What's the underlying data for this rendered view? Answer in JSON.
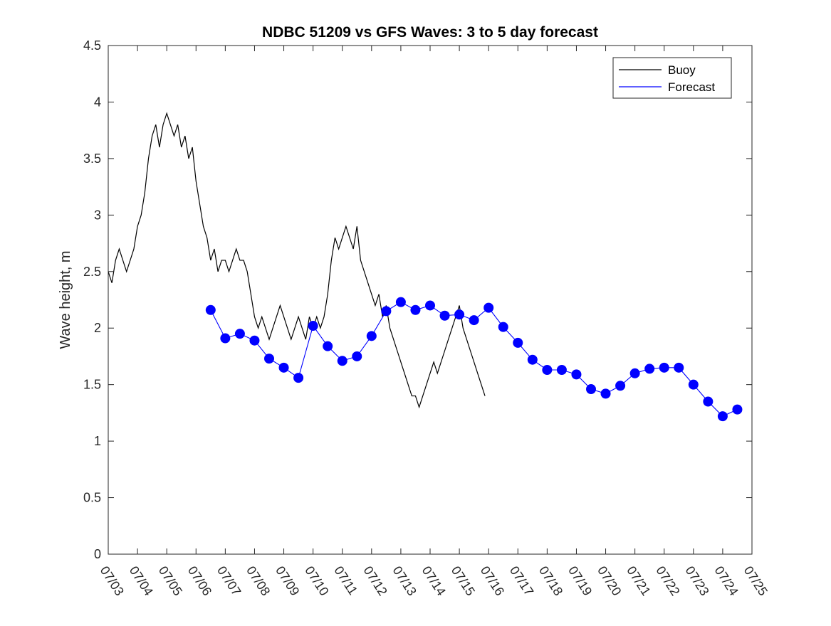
{
  "chart_data": {
    "type": "line",
    "title": "NDBC 51209 vs GFS Waves: 3 to 5 day forecast",
    "xlabel": "",
    "ylabel": "Wave height, m",
    "xlim": [
      "07/03",
      "07/25"
    ],
    "ylim": [
      0,
      4.5
    ],
    "x_tick_labels": [
      "07/03",
      "07/04",
      "07/05",
      "07/06",
      "07/07",
      "07/08",
      "07/09",
      "07/10",
      "07/11",
      "07/12",
      "07/13",
      "07/14",
      "07/15",
      "07/16",
      "07/17",
      "07/18",
      "07/19",
      "07/20",
      "07/21",
      "07/22",
      "07/23",
      "07/24",
      "07/25"
    ],
    "y_ticks": [
      0,
      0.5,
      1,
      1.5,
      2,
      2.5,
      3,
      3.5,
      4,
      4.5
    ],
    "y_tick_labels": [
      "0",
      "0.5",
      "1",
      "1.5",
      "2",
      "2.5",
      "3",
      "3.5",
      "4",
      "4.5"
    ],
    "grid": false,
    "legend_position": "top-right",
    "legend": [
      {
        "label": "Buoy",
        "color": "#000000"
      },
      {
        "label": "Forecast",
        "color": "#0000ff"
      }
    ],
    "series": [
      {
        "name": "Buoy",
        "color": "#000000",
        "style": "line",
        "points": [
          [
            "07/03 00:00",
            2.5
          ],
          [
            "07/03 03:00",
            2.4
          ],
          [
            "07/03 06:00",
            2.6
          ],
          [
            "07/03 09:00",
            2.7
          ],
          [
            "07/03 12:00",
            2.6
          ],
          [
            "07/03 15:00",
            2.5
          ],
          [
            "07/03 18:00",
            2.6
          ],
          [
            "07/03 21:00",
            2.7
          ],
          [
            "07/04 00:00",
            2.9
          ],
          [
            "07/04 03:00",
            3.0
          ],
          [
            "07/04 06:00",
            3.2
          ],
          [
            "07/04 09:00",
            3.5
          ],
          [
            "07/04 12:00",
            3.7
          ],
          [
            "07/04 15:00",
            3.8
          ],
          [
            "07/04 18:00",
            3.6
          ],
          [
            "07/04 21:00",
            3.8
          ],
          [
            "07/05 00:00",
            3.9
          ],
          [
            "07/05 03:00",
            3.8
          ],
          [
            "07/05 06:00",
            3.7
          ],
          [
            "07/05 09:00",
            3.8
          ],
          [
            "07/05 12:00",
            3.6
          ],
          [
            "07/05 15:00",
            3.7
          ],
          [
            "07/05 18:00",
            3.5
          ],
          [
            "07/05 21:00",
            3.6
          ],
          [
            "07/06 00:00",
            3.3
          ],
          [
            "07/06 03:00",
            3.1
          ],
          [
            "07/06 06:00",
            2.9
          ],
          [
            "07/06 09:00",
            2.8
          ],
          [
            "07/06 12:00",
            2.6
          ],
          [
            "07/06 15:00",
            2.7
          ],
          [
            "07/06 18:00",
            2.5
          ],
          [
            "07/06 21:00",
            2.6
          ],
          [
            "07/07 00:00",
            2.6
          ],
          [
            "07/07 03:00",
            2.5
          ],
          [
            "07/07 06:00",
            2.6
          ],
          [
            "07/07 09:00",
            2.7
          ],
          [
            "07/07 12:00",
            2.6
          ],
          [
            "07/07 15:00",
            2.6
          ],
          [
            "07/07 18:00",
            2.5
          ],
          [
            "07/07 21:00",
            2.3
          ],
          [
            "07/08 00:00",
            2.1
          ],
          [
            "07/08 03:00",
            2.0
          ],
          [
            "07/08 06:00",
            2.1
          ],
          [
            "07/08 09:00",
            2.0
          ],
          [
            "07/08 12:00",
            1.9
          ],
          [
            "07/08 15:00",
            2.0
          ],
          [
            "07/08 18:00",
            2.1
          ],
          [
            "07/08 21:00",
            2.2
          ],
          [
            "07/09 00:00",
            2.1
          ],
          [
            "07/09 03:00",
            2.0
          ],
          [
            "07/09 06:00",
            1.9
          ],
          [
            "07/09 09:00",
            2.0
          ],
          [
            "07/09 12:00",
            2.1
          ],
          [
            "07/09 15:00",
            2.0
          ],
          [
            "07/09 18:00",
            1.9
          ],
          [
            "07/09 21:00",
            2.1
          ],
          [
            "07/10 00:00",
            2.0
          ],
          [
            "07/10 03:00",
            2.1
          ],
          [
            "07/10 06:00",
            2.0
          ],
          [
            "07/10 09:00",
            2.1
          ],
          [
            "07/10 12:00",
            2.3
          ],
          [
            "07/10 15:00",
            2.6
          ],
          [
            "07/10 18:00",
            2.8
          ],
          [
            "07/10 21:00",
            2.7
          ],
          [
            "07/11 00:00",
            2.8
          ],
          [
            "07/11 03:00",
            2.9
          ],
          [
            "07/11 06:00",
            2.8
          ],
          [
            "07/11 09:00",
            2.7
          ],
          [
            "07/11 12:00",
            2.9
          ],
          [
            "07/11 15:00",
            2.6
          ],
          [
            "07/11 18:00",
            2.5
          ],
          [
            "07/11 21:00",
            2.4
          ],
          [
            "07/12 00:00",
            2.3
          ],
          [
            "07/12 03:00",
            2.2
          ],
          [
            "07/12 06:00",
            2.3
          ],
          [
            "07/12 09:00",
            2.1
          ],
          [
            "07/12 12:00",
            2.2
          ],
          [
            "07/12 15:00",
            2.0
          ],
          [
            "07/12 18:00",
            1.9
          ],
          [
            "07/12 21:00",
            1.8
          ],
          [
            "07/13 00:00",
            1.7
          ],
          [
            "07/13 03:00",
            1.6
          ],
          [
            "07/13 06:00",
            1.5
          ],
          [
            "07/13 09:00",
            1.4
          ],
          [
            "07/13 12:00",
            1.4
          ],
          [
            "07/13 15:00",
            1.3
          ],
          [
            "07/13 18:00",
            1.4
          ],
          [
            "07/13 21:00",
            1.5
          ],
          [
            "07/14 00:00",
            1.6
          ],
          [
            "07/14 03:00",
            1.7
          ],
          [
            "07/14 06:00",
            1.6
          ],
          [
            "07/14 09:00",
            1.7
          ],
          [
            "07/14 12:00",
            1.8
          ],
          [
            "07/14 15:00",
            1.9
          ],
          [
            "07/14 18:00",
            2.0
          ],
          [
            "07/14 21:00",
            2.1
          ],
          [
            "07/15 00:00",
            2.2
          ],
          [
            "07/15 03:00",
            2.0
          ],
          [
            "07/15 06:00",
            1.9
          ],
          [
            "07/15 09:00",
            1.8
          ],
          [
            "07/15 12:00",
            1.7
          ],
          [
            "07/15 15:00",
            1.6
          ],
          [
            "07/15 18:00",
            1.5
          ],
          [
            "07/15 21:00",
            1.4
          ]
        ]
      },
      {
        "name": "Forecast",
        "color": "#0000ff",
        "style": "markers",
        "points": [
          [
            "07/06 12:00",
            2.16
          ],
          [
            "07/07 00:00",
            1.91
          ],
          [
            "07/07 12:00",
            1.95
          ],
          [
            "07/08 00:00",
            1.89
          ],
          [
            "07/08 12:00",
            1.73
          ],
          [
            "07/09 00:00",
            1.65
          ],
          [
            "07/09 12:00",
            1.56
          ],
          [
            "07/10 00:00",
            2.02
          ],
          [
            "07/10 12:00",
            1.84
          ],
          [
            "07/11 00:00",
            1.71
          ],
          [
            "07/11 12:00",
            1.75
          ],
          [
            "07/12 00:00",
            1.93
          ],
          [
            "07/12 12:00",
            2.15
          ],
          [
            "07/13 00:00",
            2.23
          ],
          [
            "07/13 12:00",
            2.16
          ],
          [
            "07/14 00:00",
            2.2
          ],
          [
            "07/14 12:00",
            2.11
          ],
          [
            "07/15 00:00",
            2.12
          ],
          [
            "07/15 12:00",
            2.07
          ],
          [
            "07/16 00:00",
            2.18
          ],
          [
            "07/16 12:00",
            2.01
          ],
          [
            "07/17 00:00",
            1.87
          ],
          [
            "07/17 12:00",
            1.72
          ],
          [
            "07/18 00:00",
            1.63
          ],
          [
            "07/18 12:00",
            1.63
          ],
          [
            "07/19 00:00",
            1.59
          ],
          [
            "07/19 12:00",
            1.46
          ],
          [
            "07/20 00:00",
            1.42
          ],
          [
            "07/20 12:00",
            1.49
          ],
          [
            "07/21 00:00",
            1.6
          ],
          [
            "07/21 12:00",
            1.64
          ],
          [
            "07/22 00:00",
            1.65
          ],
          [
            "07/22 12:00",
            1.65
          ],
          [
            "07/23 00:00",
            1.5
          ],
          [
            "07/23 12:00",
            1.35
          ],
          [
            "07/24 00:00",
            1.22
          ],
          [
            "07/24 12:00",
            1.28
          ]
        ]
      }
    ]
  }
}
